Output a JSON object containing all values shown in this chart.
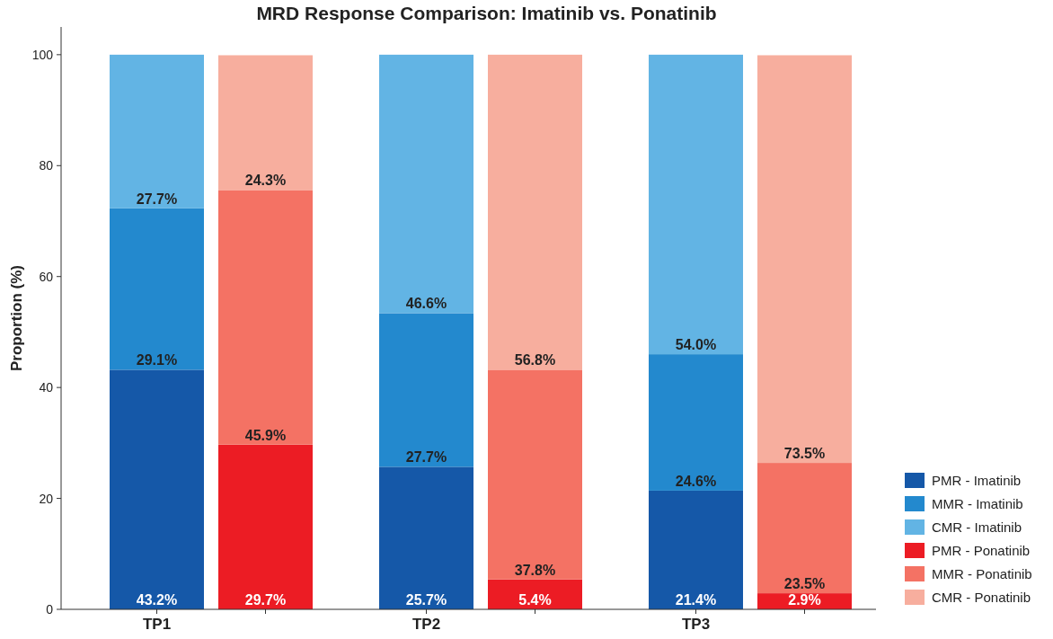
{
  "chart_data": {
    "type": "bar",
    "title": "MRD Response Comparison: Imatinib vs. Ponatinib",
    "ylabel": "Proportion (%)",
    "stacked": true,
    "categories": [
      "TP1",
      null,
      "TP2",
      null,
      "TP3",
      null
    ],
    "ylim": [
      0,
      105
    ],
    "yticks": [
      0,
      20,
      40,
      60,
      80,
      100
    ],
    "grid": false,
    "legend": "bottom right",
    "series": [
      {
        "name": "PMR - Imatinib",
        "color": "#1558a8",
        "values": [
          43.2,
          null,
          25.7,
          null,
          21.4,
          null
        ],
        "value_labels": [
          "43.2%",
          null,
          "25.7%",
          null,
          "21.4%",
          null
        ]
      },
      {
        "name": "MMR - Imatinib",
        "color": "#2389ce",
        "values": [
          29.1,
          null,
          27.7,
          null,
          24.6,
          null
        ],
        "value_labels": [
          "29.1%",
          null,
          "27.7%",
          null,
          "24.6%",
          null
        ]
      },
      {
        "name": "CMR - Imatinib",
        "color": "#62b4e4",
        "values": [
          27.7,
          null,
          46.6,
          null,
          54.0,
          null
        ],
        "value_labels": [
          "27.7%",
          null,
          "46.6%",
          null,
          "54.0%",
          null
        ]
      },
      {
        "name": "PMR - Ponatinib",
        "color": "#ec1c24",
        "values": [
          null,
          29.7,
          null,
          5.4,
          null,
          2.9
        ],
        "value_labels": [
          null,
          "29.7%",
          null,
          "5.4%",
          null,
          "2.9%"
        ]
      },
      {
        "name": "MMR - Ponatinib",
        "color": "#f47264",
        "values": [
          null,
          45.9,
          null,
          37.8,
          null,
          23.5
        ],
        "value_labels": [
          null,
          "45.9%",
          null,
          "37.8%",
          null,
          "23.5%"
        ]
      },
      {
        "name": "CMR - Ponatinib",
        "color": "#f7ae9e",
        "values": [
          null,
          24.3,
          null,
          56.8,
          null,
          73.5
        ],
        "value_labels": [
          null,
          "24.3%",
          null,
          "56.8%",
          null,
          "73.5%"
        ]
      }
    ]
  }
}
